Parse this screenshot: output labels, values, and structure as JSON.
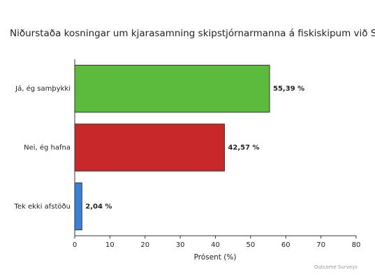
{
  "chart_data": {
    "type": "bar",
    "orientation": "horizontal",
    "title": "Niðurstaða kosningar um kjarasamning skipstjórnarmanna á fiskiskipum við SFS.",
    "categories": [
      "Já, ég samþykki",
      "Nei, ég hafna",
      "Tek ekki afstöðu"
    ],
    "values": [
      55.39,
      42.57,
      2.04
    ],
    "value_labels": [
      "55,39 %",
      "42,57 %",
      "2,04 %"
    ],
    "colors": [
      "#5cbb3c",
      "#c8282a",
      "#3a82d8"
    ],
    "xlim": [
      0,
      80
    ],
    "xticks": [
      0,
      10,
      20,
      30,
      40,
      50,
      60,
      70,
      80
    ],
    "xlabel": "Prósent (%)",
    "credit": "Outcome Surveys",
    "grid": false
  }
}
